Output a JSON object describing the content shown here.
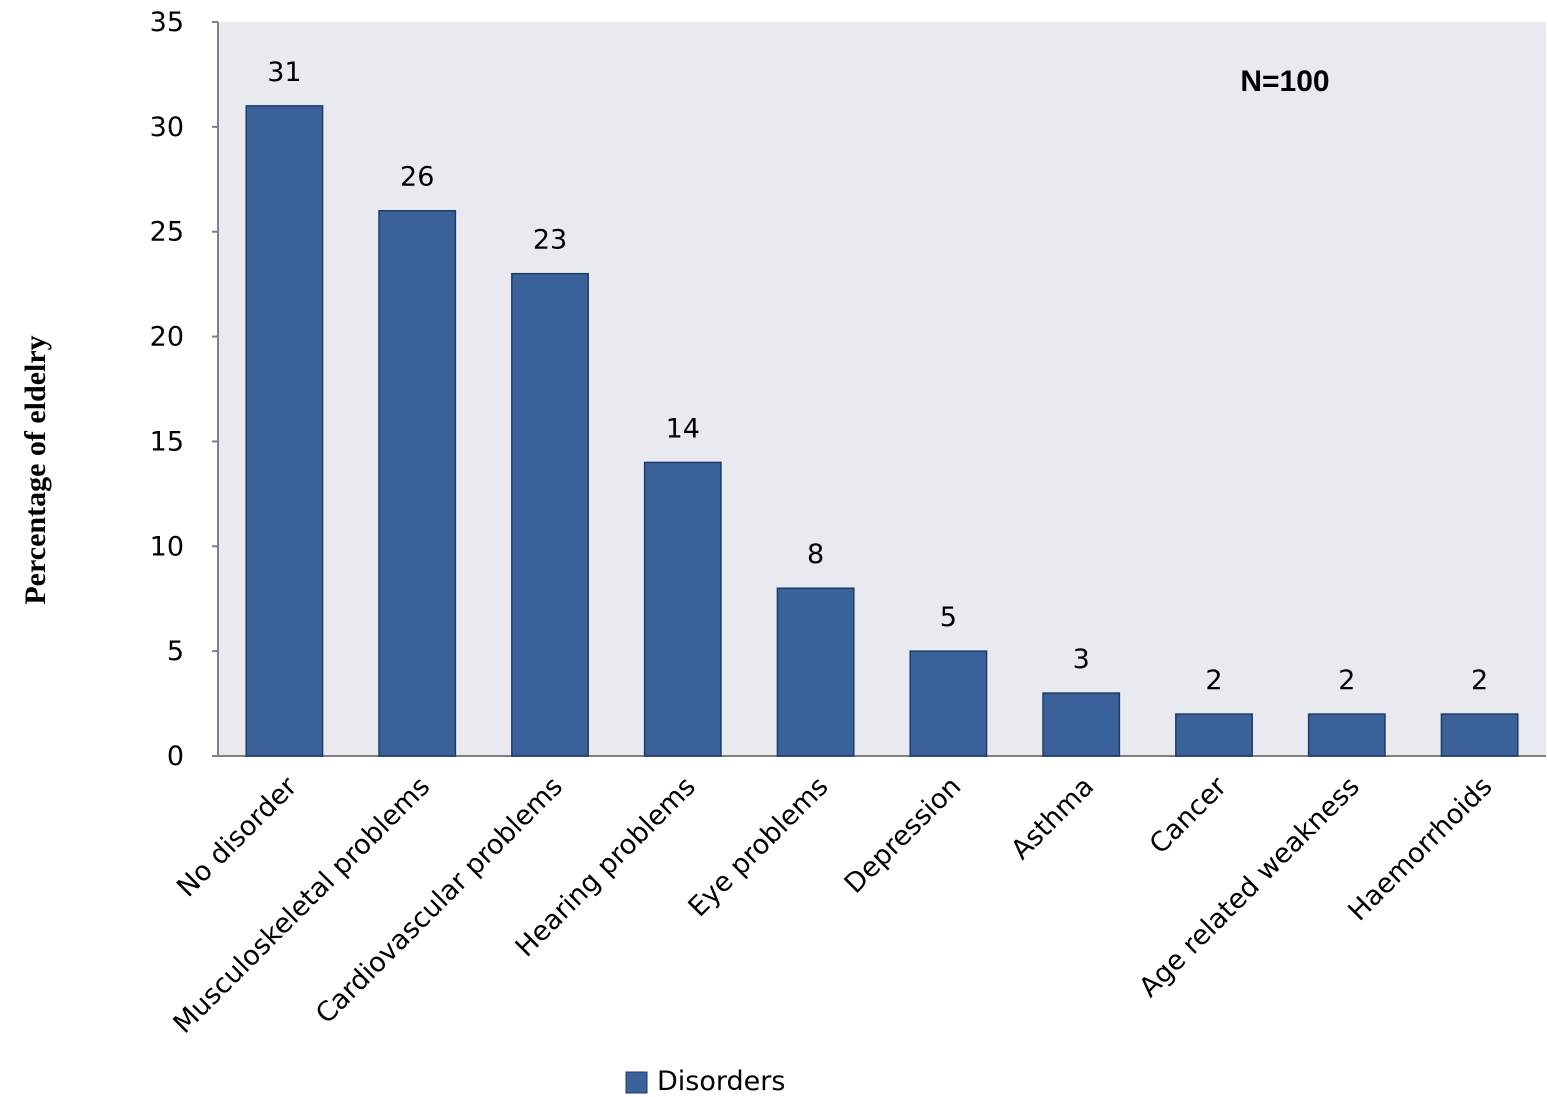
{
  "chart_data": {
    "type": "bar",
    "categories": [
      "No disorder",
      "Musculoskeletal problems",
      "Cardiovascular problems",
      "Hearing problems",
      "Eye problems",
      "Depression",
      "Asthma",
      "Cancer",
      "Age related weakness",
      "Haemorrhoids"
    ],
    "series": [
      {
        "name": "Disorders",
        "values": [
          31,
          26,
          23,
          14,
          8,
          5,
          3,
          2,
          2,
          2
        ],
        "color": "#3a6199"
      }
    ],
    "data_labels": [
      "31",
      "26",
      "23",
      "14",
      "8",
      "5",
      "3",
      "2",
      "2",
      "2"
    ],
    "title": "",
    "xlabel": "",
    "ylabel": "Percentage of eldelry",
    "ylim": [
      0,
      35
    ],
    "yticks": [
      "0",
      "5",
      "10",
      "15",
      "20",
      "25",
      "30",
      "35"
    ],
    "annotation": "N=100",
    "legend": {
      "position": "bottom",
      "entries": [
        "Disorders"
      ]
    },
    "grid": false,
    "plot_background": "#e9e9f0",
    "bar_color": "#3a6199",
    "bar_edge_color": "#1f3b66"
  }
}
